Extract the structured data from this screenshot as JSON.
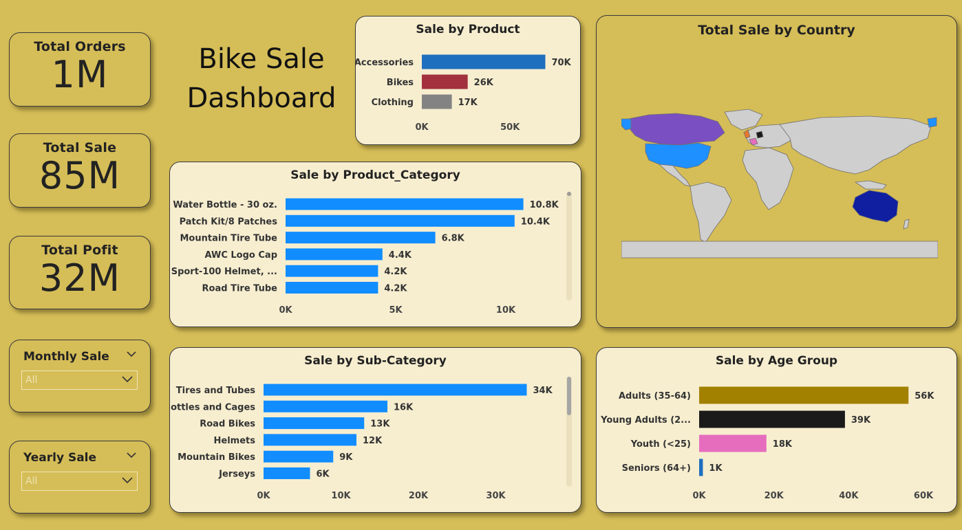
{
  "dashboard_title": "Bike Sale Dashboard",
  "kpis": {
    "orders": {
      "label": "Total Orders",
      "value": "1M"
    },
    "sale": {
      "label": "Total Sale",
      "value": "85M"
    },
    "profit": {
      "label": "Total Pofit",
      "value": "32M"
    }
  },
  "slicers": {
    "monthly": {
      "title": "Monthly Sale",
      "value": "All"
    },
    "yearly": {
      "title": "Yearly Sale",
      "value": "All"
    }
  },
  "map": {
    "title": "Total Sale by Country"
  },
  "chart_data": [
    {
      "id": "product",
      "type": "bar",
      "orientation": "horizontal",
      "title": "Sale by Product",
      "categories": [
        "Accessories",
        "Bikes",
        "Clothing"
      ],
      "values": [
        70,
        26,
        17
      ],
      "value_labels": [
        "70K",
        "26K",
        "17K"
      ],
      "colors": [
        "#1F6FBF",
        "#A2323D",
        "#838383"
      ],
      "xticks": [
        "0K",
        "50K"
      ],
      "xtick_values": [
        0,
        50
      ],
      "xlim": [
        0,
        78
      ]
    },
    {
      "id": "category",
      "type": "bar",
      "orientation": "horizontal",
      "title": "Sale by Product_Category",
      "categories": [
        "Water Bottle - 30 oz.",
        "Patch Kit/8 Patches",
        "Mountain Tire Tube",
        "AWC Logo Cap",
        "Sport-100 Helmet, ...",
        "Road Tire Tube"
      ],
      "values": [
        10.8,
        10.4,
        6.8,
        4.4,
        4.2,
        4.2
      ],
      "value_labels": [
        "10.8K",
        "10.4K",
        "6.8K",
        "4.4K",
        "4.2K",
        "4.2K"
      ],
      "colors": [
        "#118DFF"
      ],
      "xticks": [
        "0K",
        "5K",
        "10K"
      ],
      "xtick_values": [
        0,
        5,
        10
      ],
      "xlim": [
        0,
        12
      ]
    },
    {
      "id": "subcategory",
      "type": "bar",
      "orientation": "horizontal",
      "title": "Sale by Sub-Category",
      "categories": [
        "Tires and Tubes",
        "Bottles and Cages",
        "Road Bikes",
        "Helmets",
        "Mountain Bikes",
        "Jerseys"
      ],
      "values": [
        34,
        16,
        13,
        12,
        9,
        6
      ],
      "value_labels": [
        "34K",
        "16K",
        "13K",
        "12K",
        "9K",
        "6K"
      ],
      "colors": [
        "#118DFF"
      ],
      "xticks": [
        "0K",
        "10K",
        "20K",
        "30K"
      ],
      "xtick_values": [
        0,
        10,
        20,
        30
      ],
      "xlim": [
        0,
        36
      ]
    },
    {
      "id": "age",
      "type": "bar",
      "orientation": "horizontal",
      "title": "Sale by Age Group",
      "categories": [
        "Adults (35-64)",
        "Young Adults (2...",
        "Youth (<25)",
        "Seniors (64+)"
      ],
      "values": [
        56,
        39,
        18,
        1
      ],
      "value_labels": [
        "56K",
        "39K",
        "18K",
        "1K"
      ],
      "colors": [
        "#A38100",
        "#1A1A1A",
        "#E66DBE",
        "#1F6FBF"
      ],
      "xticks": [
        "0K",
        "20K",
        "40K",
        "60K"
      ],
      "xtick_values": [
        0,
        20,
        40,
        60
      ],
      "xlim": [
        0,
        60
      ]
    }
  ]
}
